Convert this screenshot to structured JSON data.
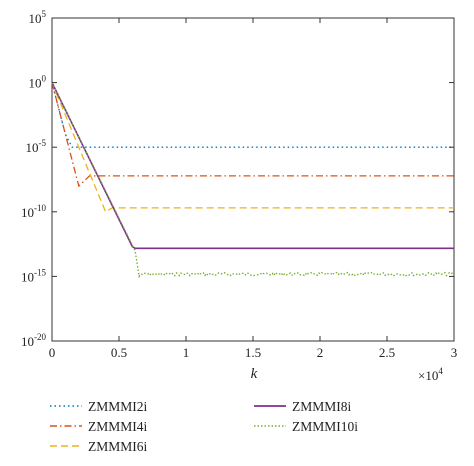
{
  "chart_data": {
    "type": "line",
    "title": "",
    "xlabel": "k",
    "ylabel": "",
    "xlim": [
      0,
      30000
    ],
    "ylim": [
      1e-20,
      100000.0
    ],
    "yscale": "log",
    "x_multiplier_label": "×10",
    "x_multiplier_exp": "4",
    "grid": false,
    "legend_position": "bottom",
    "x_ticks": [
      {
        "value": 0,
        "label": "0"
      },
      {
        "value": 5000,
        "label": "0.5"
      },
      {
        "value": 10000,
        "label": "1"
      },
      {
        "value": 15000,
        "label": "1.5"
      },
      {
        "value": 20000,
        "label": "2"
      },
      {
        "value": 25000,
        "label": "2.5"
      },
      {
        "value": 30000,
        "label": "3"
      }
    ],
    "y_ticks": [
      {
        "value": 1e-20,
        "base": "10",
        "exp": "-20"
      },
      {
        "value": 1e-15,
        "base": "10",
        "exp": "-15"
      },
      {
        "value": 1e-10,
        "base": "10",
        "exp": "-10"
      },
      {
        "value": 1e-05,
        "base": "10",
        "exp": "-5"
      },
      {
        "value": 1,
        "base": "10",
        "exp": "0"
      },
      {
        "value": 100000.0,
        "base": "10",
        "exp": "5"
      }
    ],
    "series": [
      {
        "name": "ZMMMI2i",
        "color": "#0072BD",
        "dash": "dotted",
        "points": [
          [
            0,
            1
          ],
          [
            1000,
            0.0001
          ],
          [
            1500,
            1e-05
          ],
          [
            30000,
            1e-05
          ]
        ]
      },
      {
        "name": "ZMMMI4i",
        "color": "#D95319",
        "dash": "dashdot",
        "points": [
          [
            0,
            1
          ],
          [
            2000,
            1e-08
          ],
          [
            2800,
            6e-08
          ],
          [
            30000,
            6e-08
          ]
        ]
      },
      {
        "name": "ZMMMI6i",
        "color": "#EDB120",
        "dash": "dashed",
        "points": [
          [
            0,
            1
          ],
          [
            4000,
            1e-10
          ],
          [
            4500,
            2e-10
          ],
          [
            30000,
            2e-10
          ]
        ]
      },
      {
        "name": "ZMMMI8i",
        "color": "#7E2F8E",
        "dash": "solid",
        "points": [
          [
            0,
            1
          ],
          [
            6000,
            2e-13
          ],
          [
            6200,
            1.5e-13
          ],
          [
            30000,
            1.5e-13
          ]
        ]
      },
      {
        "name": "ZMMMI10i",
        "color": "#77AC30",
        "dash": "dotted-noisy",
        "points": [
          [
            0,
            1
          ],
          [
            6200,
            1e-13
          ],
          [
            6500,
            1e-15
          ],
          [
            6600,
            1.5e-15
          ],
          [
            30000,
            1.5e-15
          ]
        ]
      }
    ]
  }
}
